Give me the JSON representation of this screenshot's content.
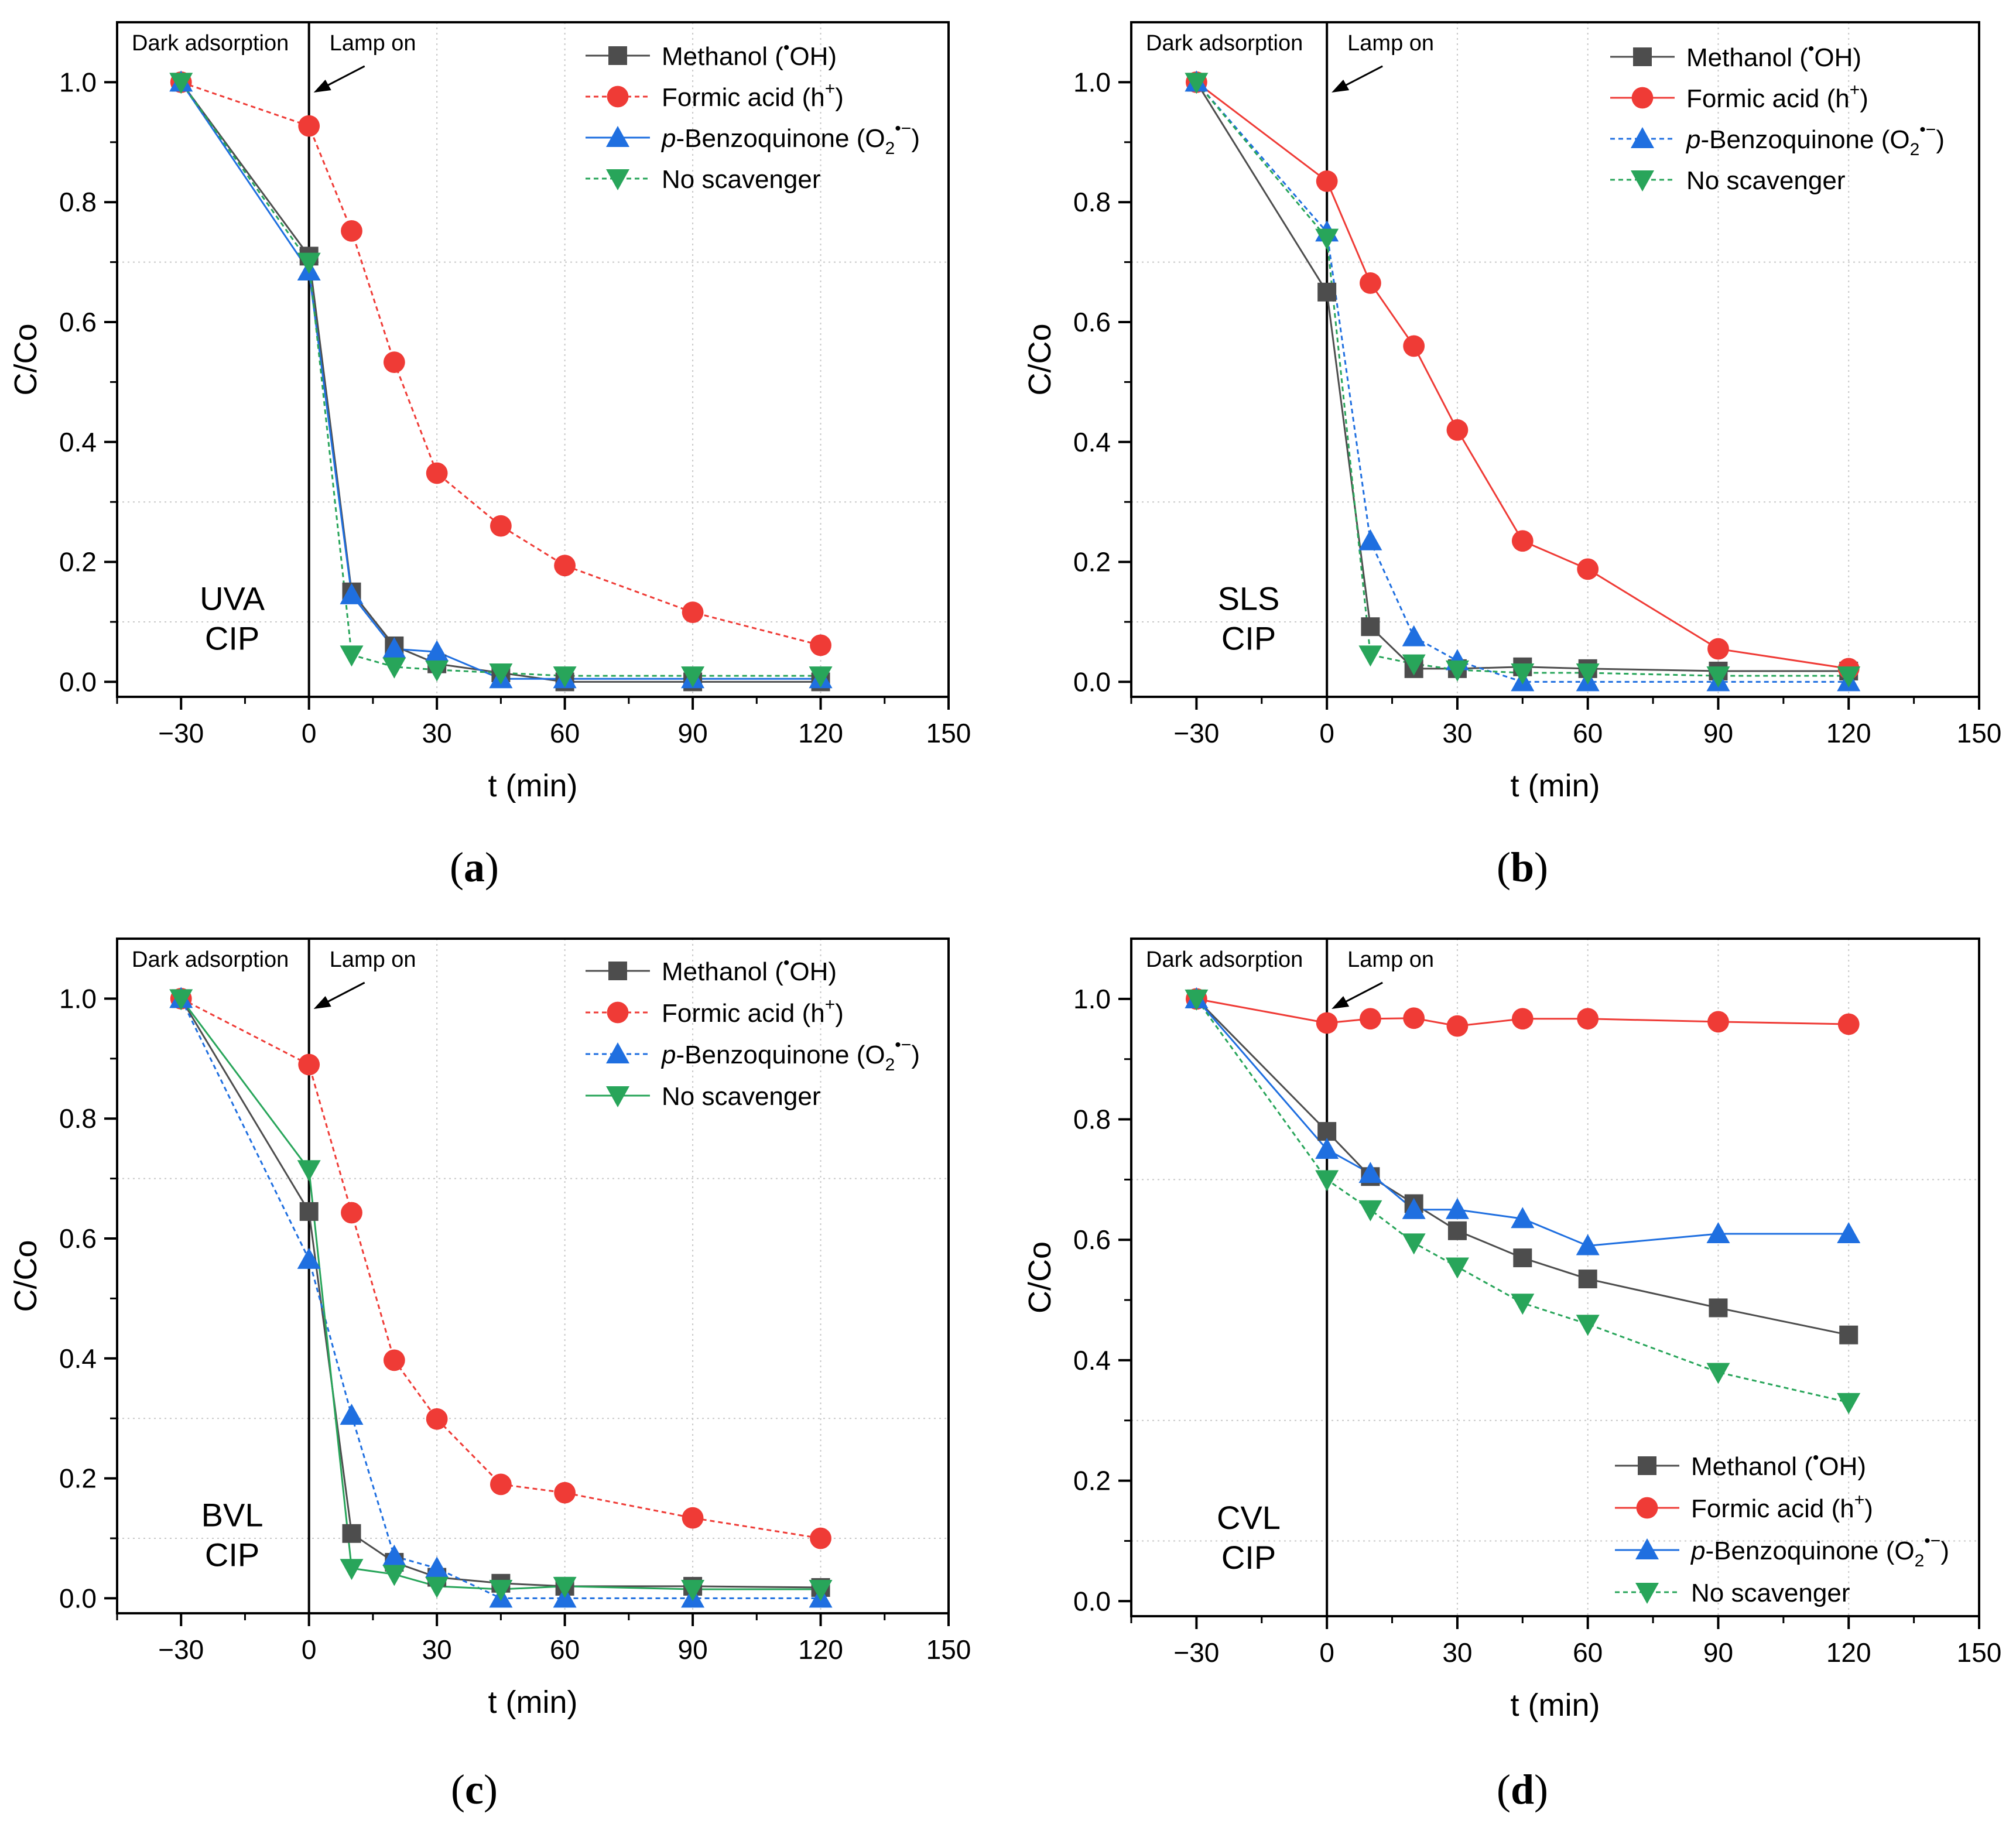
{
  "chart_data": [
    {
      "type": "line",
      "panel_label": "a",
      "title": "",
      "xlabel": "t (min)",
      "ylabel": "C/Co",
      "xlim": [
        -45,
        150
      ],
      "ylim": [
        -0.025,
        1.1
      ],
      "xticks": [
        "−30",
        "0",
        "30",
        "60",
        "90",
        "120",
        "150"
      ],
      "yticks": [
        "0.0",
        "0.2",
        "0.4",
        "0.6",
        "0.8",
        "1.0"
      ],
      "annotations": {
        "dark": "Dark adsorption",
        "lamp": "Lamp on",
        "sample": [
          "UVA",
          "CIP"
        ]
      },
      "legend_position": "top-right",
      "series": [
        {
          "name": "Methanol (•OH)",
          "label_main": "Methanol (",
          "label_sup": "•",
          "label_tail": "OH)",
          "color": "#4d4d4d",
          "marker": "square",
          "dash": false,
          "x": [
            -30,
            0,
            10,
            20,
            30,
            45,
            60,
            90,
            120
          ],
          "y": [
            1.0,
            0.71,
            0.15,
            0.06,
            0.03,
            0.015,
            0.0,
            0.0,
            0.0
          ]
        },
        {
          "name": "Formic acid (h+)",
          "label_main": "Formic acid (h",
          "label_sup": "+",
          "label_tail": ")",
          "color": "#ef3b36",
          "marker": "circle",
          "dash": true,
          "x": [
            -30,
            0,
            10,
            20,
            30,
            45,
            60,
            90,
            120
          ],
          "y": [
            1.0,
            0.927,
            0.752,
            0.533,
            0.348,
            0.26,
            0.194,
            0.116,
            0.061
          ]
        },
        {
          "name": "p-Benzoquinone (O2•−)",
          "label_italic": "p",
          "label_main": "-Benzoquinone (O",
          "label_sub": "2",
          "label_sup": "•−",
          "label_tail": ")",
          "color": "#1f6fe0",
          "marker": "triangle-up",
          "dash": false,
          "x": [
            -30,
            0,
            10,
            20,
            30,
            45,
            60,
            90,
            120
          ],
          "y": [
            1.0,
            0.685,
            0.145,
            0.055,
            0.05,
            0.005,
            0.005,
            0.005,
            0.005
          ]
        },
        {
          "name": "No scavenger",
          "label_main": "No scavenger",
          "color": "#28a55a",
          "marker": "triangle-down",
          "dash": true,
          "x": [
            -30,
            0,
            10,
            20,
            30,
            45,
            60,
            90,
            120
          ],
          "y": [
            1.0,
            0.7,
            0.045,
            0.025,
            0.02,
            0.015,
            0.01,
            0.01,
            0.01
          ]
        }
      ]
    },
    {
      "type": "line",
      "panel_label": "b",
      "title": "",
      "xlabel": "t (min)",
      "ylabel": "C/Co",
      "xlim": [
        -45,
        150
      ],
      "ylim": [
        -0.025,
        1.1
      ],
      "xticks": [
        "−30",
        "0",
        "30",
        "60",
        "90",
        "120",
        "150"
      ],
      "yticks": [
        "0.0",
        "0.2",
        "0.4",
        "0.6",
        "0.8",
        "1.0"
      ],
      "annotations": {
        "dark": "Dark adsorption",
        "lamp": "Lamp on",
        "sample": [
          "SLS",
          "CIP"
        ]
      },
      "legend_position": "top-right",
      "series": [
        {
          "name": "Methanol (•OH)",
          "label_main": "Methanol (",
          "label_sup": "•",
          "label_tail": "OH)",
          "color": "#4d4d4d",
          "marker": "square",
          "dash": false,
          "x": [
            -30,
            0,
            10,
            20,
            30,
            45,
            60,
            90,
            120
          ],
          "y": [
            1.0,
            0.65,
            0.092,
            0.022,
            0.022,
            0.025,
            0.022,
            0.018,
            0.018
          ]
        },
        {
          "name": "Formic acid (h+)",
          "label_main": "Formic acid (h",
          "label_sup": "+",
          "label_tail": ")",
          "color": "#ef3b36",
          "marker": "circle",
          "dash": false,
          "x": [
            -30,
            0,
            10,
            20,
            30,
            45,
            60,
            90,
            120
          ],
          "y": [
            1.0,
            0.835,
            0.665,
            0.56,
            0.42,
            0.235,
            0.188,
            0.055,
            0.022
          ]
        },
        {
          "name": "p-Benzoquinone (O2•−)",
          "label_italic": "p",
          "label_main": "-Benzoquinone (O",
          "label_sub": "2",
          "label_sup": "•−",
          "label_tail": ")",
          "color": "#1f6fe0",
          "marker": "triangle-up",
          "dash": true,
          "x": [
            -30,
            0,
            10,
            20,
            30,
            45,
            60,
            90,
            120
          ],
          "y": [
            1.0,
            0.75,
            0.235,
            0.075,
            0.035,
            0.0,
            0.0,
            0.0,
            0.0
          ]
        },
        {
          "name": "No scavenger",
          "label_main": "No scavenger",
          "color": "#28a55a",
          "marker": "triangle-down",
          "dash": true,
          "x": [
            -30,
            0,
            10,
            20,
            30,
            45,
            60,
            90,
            120
          ],
          "y": [
            1.0,
            0.74,
            0.045,
            0.03,
            0.02,
            0.015,
            0.015,
            0.01,
            0.01
          ]
        }
      ]
    },
    {
      "type": "line",
      "panel_label": "c",
      "title": "",
      "xlabel": "t (min)",
      "ylabel": "C/Co",
      "xlim": [
        -45,
        150
      ],
      "ylim": [
        -0.025,
        1.1
      ],
      "xticks": [
        "−30",
        "0",
        "30",
        "60",
        "90",
        "120",
        "150"
      ],
      "yticks": [
        "0.0",
        "0.2",
        "0.4",
        "0.6",
        "0.8",
        "1.0"
      ],
      "annotations": {
        "dark": "Dark adsorption",
        "lamp": "Lamp on",
        "sample": [
          "BVL",
          "CIP"
        ]
      },
      "legend_position": "top-right",
      "series": [
        {
          "name": "Methanol (•OH)",
          "label_main": "Methanol (",
          "label_sup": "•",
          "label_tail": "OH)",
          "color": "#4d4d4d",
          "marker": "square",
          "dash": false,
          "x": [
            -30,
            0,
            10,
            20,
            30,
            45,
            60,
            90,
            120
          ],
          "y": [
            1.0,
            0.645,
            0.108,
            0.06,
            0.035,
            0.025,
            0.02,
            0.02,
            0.018
          ]
        },
        {
          "name": "Formic acid (h+)",
          "label_main": "Formic acid (h",
          "label_sup": "+",
          "label_tail": ")",
          "color": "#ef3b36",
          "marker": "circle",
          "dash": true,
          "x": [
            -30,
            0,
            10,
            20,
            30,
            45,
            60,
            90,
            120
          ],
          "y": [
            1.0,
            0.89,
            0.643,
            0.397,
            0.299,
            0.19,
            0.176,
            0.134,
            0.1
          ]
        },
        {
          "name": "p-Benzoquinone (O2•−)",
          "label_italic": "p",
          "label_main": "-Benzoquinone (O",
          "label_sub": "2",
          "label_sup": "•−",
          "label_tail": ")",
          "color": "#1f6fe0",
          "marker": "triangle-up",
          "dash": true,
          "x": [
            -30,
            0,
            10,
            20,
            30,
            45,
            60,
            90,
            120
          ],
          "y": [
            1.0,
            0.565,
            0.305,
            0.07,
            0.05,
            0.0,
            0.0,
            0.0,
            0.0
          ]
        },
        {
          "name": "No scavenger",
          "label_main": "No scavenger",
          "color": "#28a55a",
          "marker": "triangle-down",
          "dash": false,
          "x": [
            -30,
            0,
            10,
            20,
            30,
            45,
            60,
            90,
            120
          ],
          "y": [
            1.0,
            0.715,
            0.05,
            0.04,
            0.02,
            0.015,
            0.02,
            0.015,
            0.015
          ]
        }
      ]
    },
    {
      "type": "line",
      "panel_label": "d",
      "title": "",
      "xlabel": "t (min)",
      "ylabel": "C/Co",
      "xlim": [
        -45,
        150
      ],
      "ylim": [
        -0.025,
        1.1
      ],
      "xticks": [
        "−30",
        "0",
        "30",
        "60",
        "90",
        "120",
        "150"
      ],
      "yticks": [
        "0.0",
        "0.2",
        "0.4",
        "0.6",
        "0.8",
        "1.0"
      ],
      "annotations": {
        "dark": "Dark adsorption",
        "lamp": "Lamp on",
        "sample": [
          "CVL",
          "CIP"
        ]
      },
      "legend_position": "bottom-right",
      "series": [
        {
          "name": "Methanol (•OH)",
          "label_main": "Methanol (",
          "label_sup": "•",
          "label_tail": "OH)",
          "color": "#4d4d4d",
          "marker": "square",
          "dash": false,
          "x": [
            -30,
            0,
            10,
            20,
            30,
            45,
            60,
            90,
            120
          ],
          "y": [
            1.0,
            0.78,
            0.705,
            0.66,
            0.615,
            0.57,
            0.535,
            0.487,
            0.442
          ]
        },
        {
          "name": "Formic acid (h+)",
          "label_main": "Formic acid (h",
          "label_sup": "+",
          "label_tail": ")",
          "color": "#ef3b36",
          "marker": "circle",
          "dash": false,
          "x": [
            -30,
            0,
            10,
            20,
            30,
            45,
            60,
            90,
            120
          ],
          "y": [
            1.0,
            0.96,
            0.967,
            0.968,
            0.955,
            0.967,
            0.967,
            0.962,
            0.958
          ]
        },
        {
          "name": "p-Benzoquinone (O2•−)",
          "label_italic": "p",
          "label_main": "-Benzoquinone (O",
          "label_sub": "2",
          "label_sup": "•−",
          "label_tail": ")",
          "color": "#1f6fe0",
          "marker": "triangle-up",
          "dash": false,
          "x": [
            -30,
            0,
            10,
            20,
            30,
            45,
            60,
            90,
            120
          ],
          "y": [
            1.0,
            0.75,
            0.71,
            0.65,
            0.65,
            0.635,
            0.59,
            0.61,
            0.61
          ]
        },
        {
          "name": "No scavenger",
          "label_main": "No scavenger",
          "color": "#28a55a",
          "marker": "triangle-down",
          "dash": true,
          "x": [
            -30,
            0,
            10,
            20,
            30,
            45,
            60,
            90,
            120
          ],
          "y": [
            1.0,
            0.7,
            0.65,
            0.595,
            0.555,
            0.495,
            0.46,
            0.38,
            0.33
          ]
        }
      ]
    }
  ]
}
